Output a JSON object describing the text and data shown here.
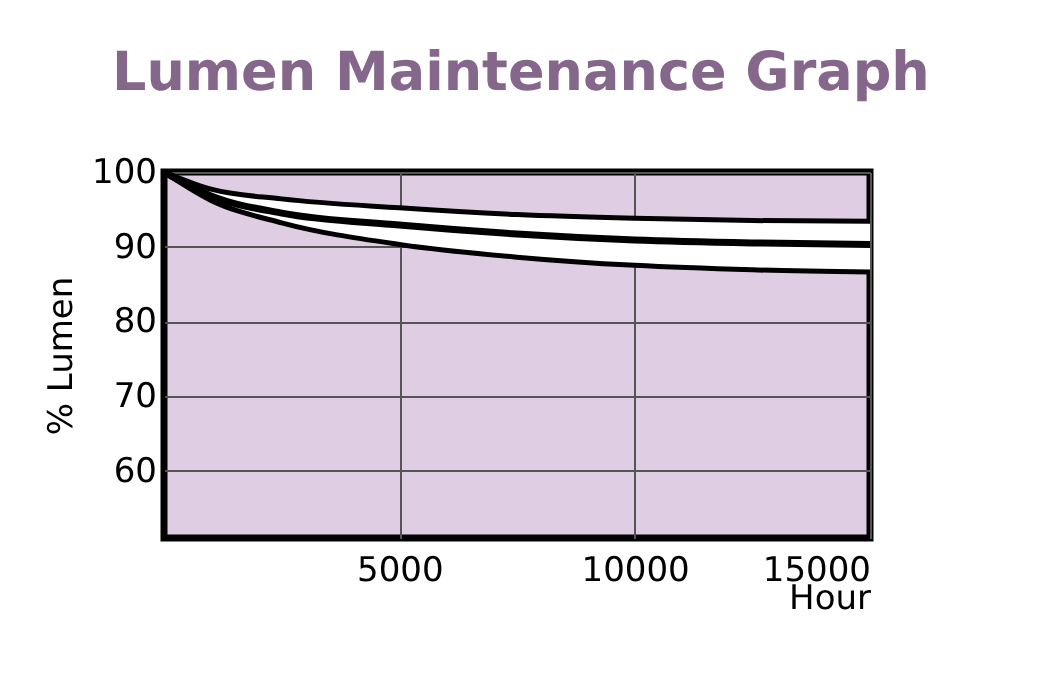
{
  "chart_data": {
    "type": "line",
    "title": "Lumen Maintenance Graph",
    "xlabel": "Hour",
    "ylabel": "% Lumen",
    "x": [
      0,
      1000,
      2500,
      5000,
      7500,
      10000,
      12500,
      15000
    ],
    "series": [
      {
        "color": "#000000",
        "values": [
          100,
          96.8,
          94.5,
          92.9,
          91.7,
          90.9,
          90.5,
          90.3
        ],
        "lower": [
          100,
          96.2,
          93.2,
          90.3,
          88.6,
          87.5,
          86.9,
          86.6
        ],
        "upper": [
          100,
          97.7,
          96.4,
          95.2,
          94.3,
          93.8,
          93.5,
          93.4
        ]
      }
    ],
    "xlim": [
      0,
      15000
    ],
    "ylim": [
      51,
      100
    ],
    "xticks": [
      5000,
      10000,
      15000
    ],
    "yticks": [
      60,
      70,
      80,
      90,
      100
    ],
    "grid": true,
    "line_style": "solid"
  }
}
